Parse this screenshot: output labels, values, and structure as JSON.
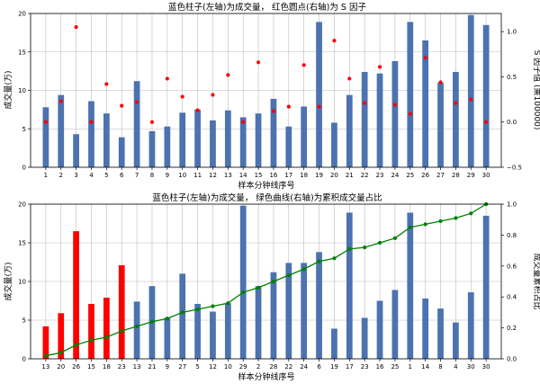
{
  "chart_data": [
    {
      "type": "bar",
      "title": "蓝色柱子(左轴)为成交量， 红色圆点(右轴)为 S 因子",
      "xlabel": "样本分钟线序号",
      "ylabel": "成交量(万)",
      "y2label": "S 因子值 (乘100000)",
      "categories": [
        "1",
        "2",
        "3",
        "4",
        "5",
        "6",
        "7",
        "8",
        "9",
        "10",
        "11",
        "12",
        "13",
        "14",
        "15",
        "16",
        "17",
        "18",
        "19",
        "20",
        "21",
        "22",
        "23",
        "24",
        "25",
        "26",
        "27",
        "28",
        "29",
        "30"
      ],
      "ylim": [
        0,
        20
      ],
      "yticks": [
        "0",
        "5",
        "10",
        "15",
        "20"
      ],
      "y2lim": [
        -0.5,
        1.2
      ],
      "y2ticks": [
        "−0.5",
        "0.0",
        "0.5",
        "1.0"
      ],
      "grid": true,
      "colors": {
        "bar": "#4c72b0",
        "dot": "#ff0000"
      },
      "series": [
        {
          "name": "成交量",
          "axis": "left",
          "kind": "bar",
          "values": [
            7.8,
            9.4,
            4.3,
            8.6,
            7.0,
            3.9,
            11.2,
            4.7,
            5.3,
            7.1,
            7.5,
            6.1,
            7.4,
            6.5,
            7.0,
            8.9,
            5.3,
            7.9,
            18.9,
            5.8,
            9.4,
            12.4,
            12.2,
            13.8,
            18.9,
            16.5,
            11.0,
            12.4,
            19.8,
            18.5
          ]
        },
        {
          "name": "S 因子",
          "axis": "right",
          "kind": "scatter",
          "values": [
            0.0,
            0.23,
            1.05,
            0.0,
            0.42,
            0.18,
            0.22,
            0.0,
            0.48,
            0.28,
            0.13,
            0.3,
            0.52,
            0.0,
            0.66,
            0.12,
            0.17,
            0.63,
            0.17,
            0.9,
            0.48,
            0.21,
            0.61,
            0.19,
            0.09,
            0.71,
            0.44,
            0.21,
            0.25,
            0.0
          ]
        }
      ]
    },
    {
      "type": "bar",
      "title": "蓝色柱子(左轴)为成交量， 绿色曲线(右轴)为累积成交量占比",
      "xlabel": "样本分钟线序号",
      "ylabel": "成交量(万)",
      "y2label": "成交量累积占比",
      "categories": [
        "13",
        "20",
        "26",
        "15",
        "18",
        "23",
        "13",
        "21",
        "9",
        "27",
        "5",
        "12",
        "10",
        "29",
        "2",
        "28",
        "22",
        "24",
        "6",
        "19",
        "17",
        "23",
        "16",
        "25",
        "1",
        "14",
        "8",
        "4",
        "30",
        "30"
      ],
      "ylim": [
        0,
        20
      ],
      "yticks": [
        "0",
        "5",
        "10",
        "15",
        "20"
      ],
      "y2lim": [
        0,
        1.0
      ],
      "y2ticks": [
        "0.0",
        "0.2",
        "0.4",
        "0.6",
        "0.8",
        "1.0"
      ],
      "grid": true,
      "colors": {
        "bar": "#4c72b0",
        "highlight": "#ff0000",
        "line": "#008000"
      },
      "highlight_count": 6,
      "series": [
        {
          "name": "成交量",
          "axis": "left",
          "kind": "bar",
          "values": [
            4.2,
            5.9,
            16.5,
            7.1,
            7.9,
            12.1,
            7.4,
            9.4,
            5.3,
            11.0,
            7.1,
            6.1,
            7.2,
            19.8,
            9.4,
            11.2,
            12.4,
            12.4,
            13.8,
            3.9,
            18.9,
            5.3,
            7.5,
            8.9,
            18.9,
            7.8,
            6.5,
            4.7,
            8.6,
            18.5
          ]
        },
        {
          "name": "成交量累积占比",
          "axis": "right",
          "kind": "line",
          "values": [
            0.02,
            0.04,
            0.09,
            0.12,
            0.14,
            0.18,
            0.21,
            0.24,
            0.26,
            0.3,
            0.32,
            0.34,
            0.36,
            0.43,
            0.46,
            0.5,
            0.54,
            0.58,
            0.63,
            0.65,
            0.71,
            0.72,
            0.75,
            0.78,
            0.85,
            0.87,
            0.89,
            0.91,
            0.94,
            1.0
          ]
        }
      ]
    }
  ]
}
